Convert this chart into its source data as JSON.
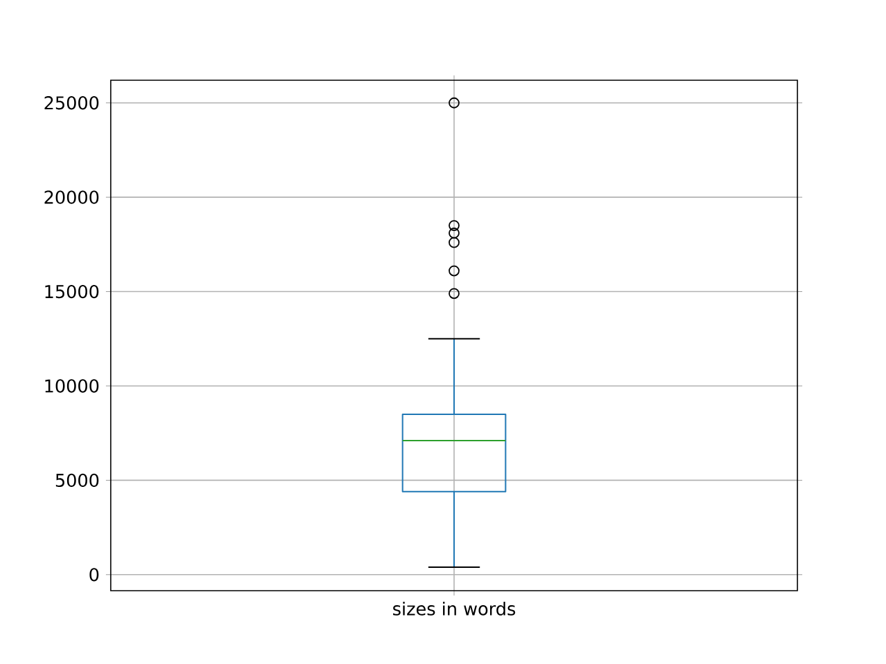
{
  "chart_data": {
    "type": "box",
    "categories": [
      "sizes in words"
    ],
    "boxes": [
      {
        "low": 400,
        "q1": 4400,
        "median": 7100,
        "q3": 8500,
        "high": 12500,
        "outliers": [
          25000,
          18500,
          18100,
          17600,
          16100,
          14900
        ]
      }
    ],
    "color": "#1f77b4",
    "ylim": [
      -850,
      26200
    ],
    "yticks": [
      0,
      5000,
      10000,
      15000,
      20000,
      25000
    ],
    "grid": true,
    "marker": "circle"
  }
}
